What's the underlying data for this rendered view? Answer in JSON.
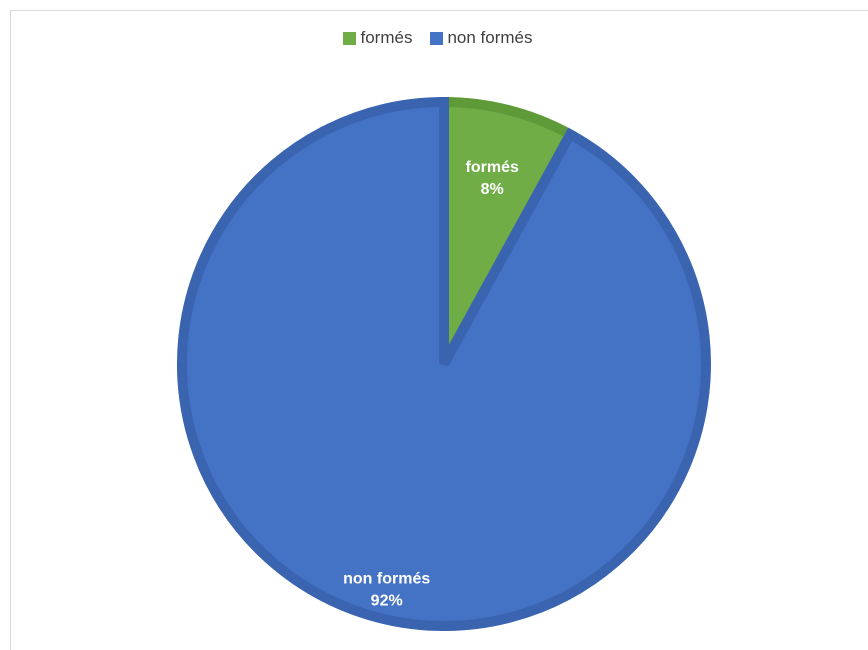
{
  "chart_data": {
    "type": "pie",
    "title": "",
    "categories": [
      "formés",
      "non formés"
    ],
    "values": [
      8,
      92
    ],
    "percent_labels": [
      "8%",
      "92%"
    ],
    "colors": [
      "#70AD47",
      "#4472C4"
    ],
    "edge_colors": [
      "#5E9A37",
      "#3A64B0"
    ],
    "legend": {
      "position": "top",
      "entries": [
        "formés",
        "non formés"
      ]
    },
    "data_labels": true,
    "start_angle_deg": 0,
    "direction": "clockwise"
  }
}
